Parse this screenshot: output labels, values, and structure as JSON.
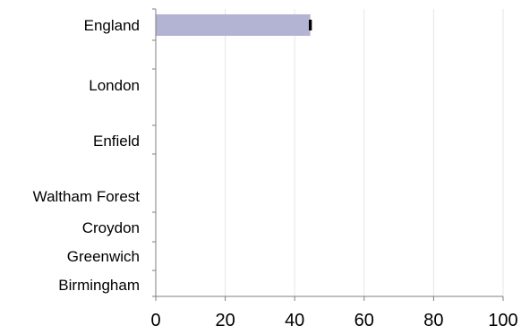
{
  "chart_data": {
    "type": "bar",
    "orientation": "horizontal",
    "categories": [
      "England",
      "London",
      "Enfield",
      "Waltham Forest",
      "Croydon",
      "Greenwich",
      "Birmingham"
    ],
    "values": [
      44.5,
      null,
      null,
      null,
      null,
      null,
      null
    ],
    "error_bar_halfwidth": [
      0.3,
      null,
      null,
      null,
      null,
      null,
      null
    ],
    "xlim": [
      0,
      100
    ],
    "xticks": [
      "0",
      "20",
      "40",
      "60",
      "80",
      "100"
    ],
    "xtick_values": [
      0,
      20,
      40,
      60,
      80,
      100
    ],
    "grid": "vertical",
    "legend": "none",
    "bar_color": "#b3b3d4",
    "error_bar_color": "#000000",
    "grid_color": "#e6e6e6",
    "axis_color": "#7f7f7f"
  }
}
